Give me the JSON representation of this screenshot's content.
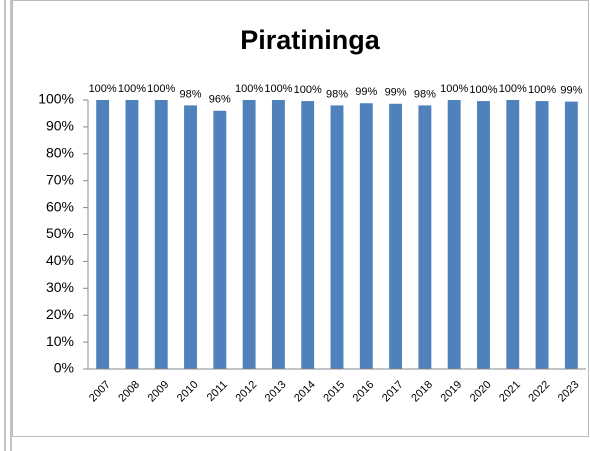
{
  "chart_data": {
    "type": "bar",
    "title": "Piratininga",
    "categories": [
      "2007",
      "2008",
      "2009",
      "2010",
      "2011",
      "2012",
      "2013",
      "2014",
      "2015",
      "2016",
      "2017",
      "2018",
      "2019",
      "2020",
      "2021",
      "2022",
      "2023"
    ],
    "values": [
      100,
      100,
      100,
      98,
      96,
      100,
      100,
      99.6,
      98,
      98.8,
      98.6,
      98,
      100,
      99.6,
      100,
      99.6,
      99.4
    ],
    "value_labels": [
      "100%",
      "100%",
      "100%",
      "98%",
      "96%",
      "100%",
      "100%",
      "100%",
      "98%",
      "99%",
      "99%",
      "98%",
      "100%",
      "100%",
      "100%",
      "100%",
      "99%"
    ],
    "color": "#4f81bd",
    "ylim": [
      0,
      100
    ],
    "yticks": [
      {
        "value": 0,
        "label": "0%"
      },
      {
        "value": 10,
        "label": "10%"
      },
      {
        "value": 20,
        "label": "20%"
      },
      {
        "value": 30,
        "label": "30%"
      },
      {
        "value": 40,
        "label": "40%"
      },
      {
        "value": 50,
        "label": "50%"
      },
      {
        "value": 60,
        "label": "60%"
      },
      {
        "value": 70,
        "label": "70%"
      },
      {
        "value": 80,
        "label": "80%"
      },
      {
        "value": 90,
        "label": "90%"
      },
      {
        "value": 100,
        "label": "100%"
      }
    ],
    "grid": false
  }
}
